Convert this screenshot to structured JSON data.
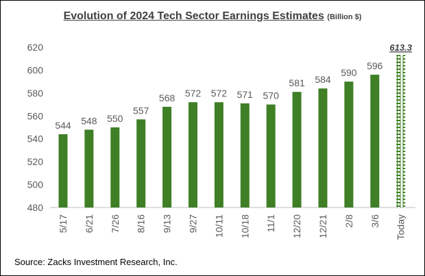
{
  "chart_data": {
    "type": "bar",
    "title": "Evolution of 2024 Tech Sector Earnings Estimates",
    "title_unit": "(Billion $)",
    "categories": [
      "5/17",
      "6/21",
      "7/26",
      "8/16",
      "9/13",
      "9/27",
      "10/11",
      "10/18",
      "11/1",
      "12/20",
      "12/21",
      "2/8",
      "3/6",
      "Today"
    ],
    "values": [
      544,
      548,
      550,
      557,
      568,
      572,
      572,
      571,
      570,
      581,
      584,
      590,
      596,
      613.3
    ],
    "data_labels": [
      "544",
      "548",
      "550",
      "557",
      "568",
      "572",
      "572",
      "571",
      "570",
      "581",
      "584",
      "590",
      "596",
      "613.3"
    ],
    "highlight_last": true,
    "ylim": [
      480,
      620
    ],
    "yticks": [
      "480",
      "500",
      "520",
      "540",
      "560",
      "580",
      "600",
      "620"
    ],
    "ytick_values": [
      480,
      500,
      520,
      540,
      560,
      580,
      600,
      620
    ],
    "xlabel": "",
    "ylabel": "",
    "grid": false,
    "bar_color": "#3f7f26"
  },
  "source": "Source: Zacks Investment Research, Inc."
}
